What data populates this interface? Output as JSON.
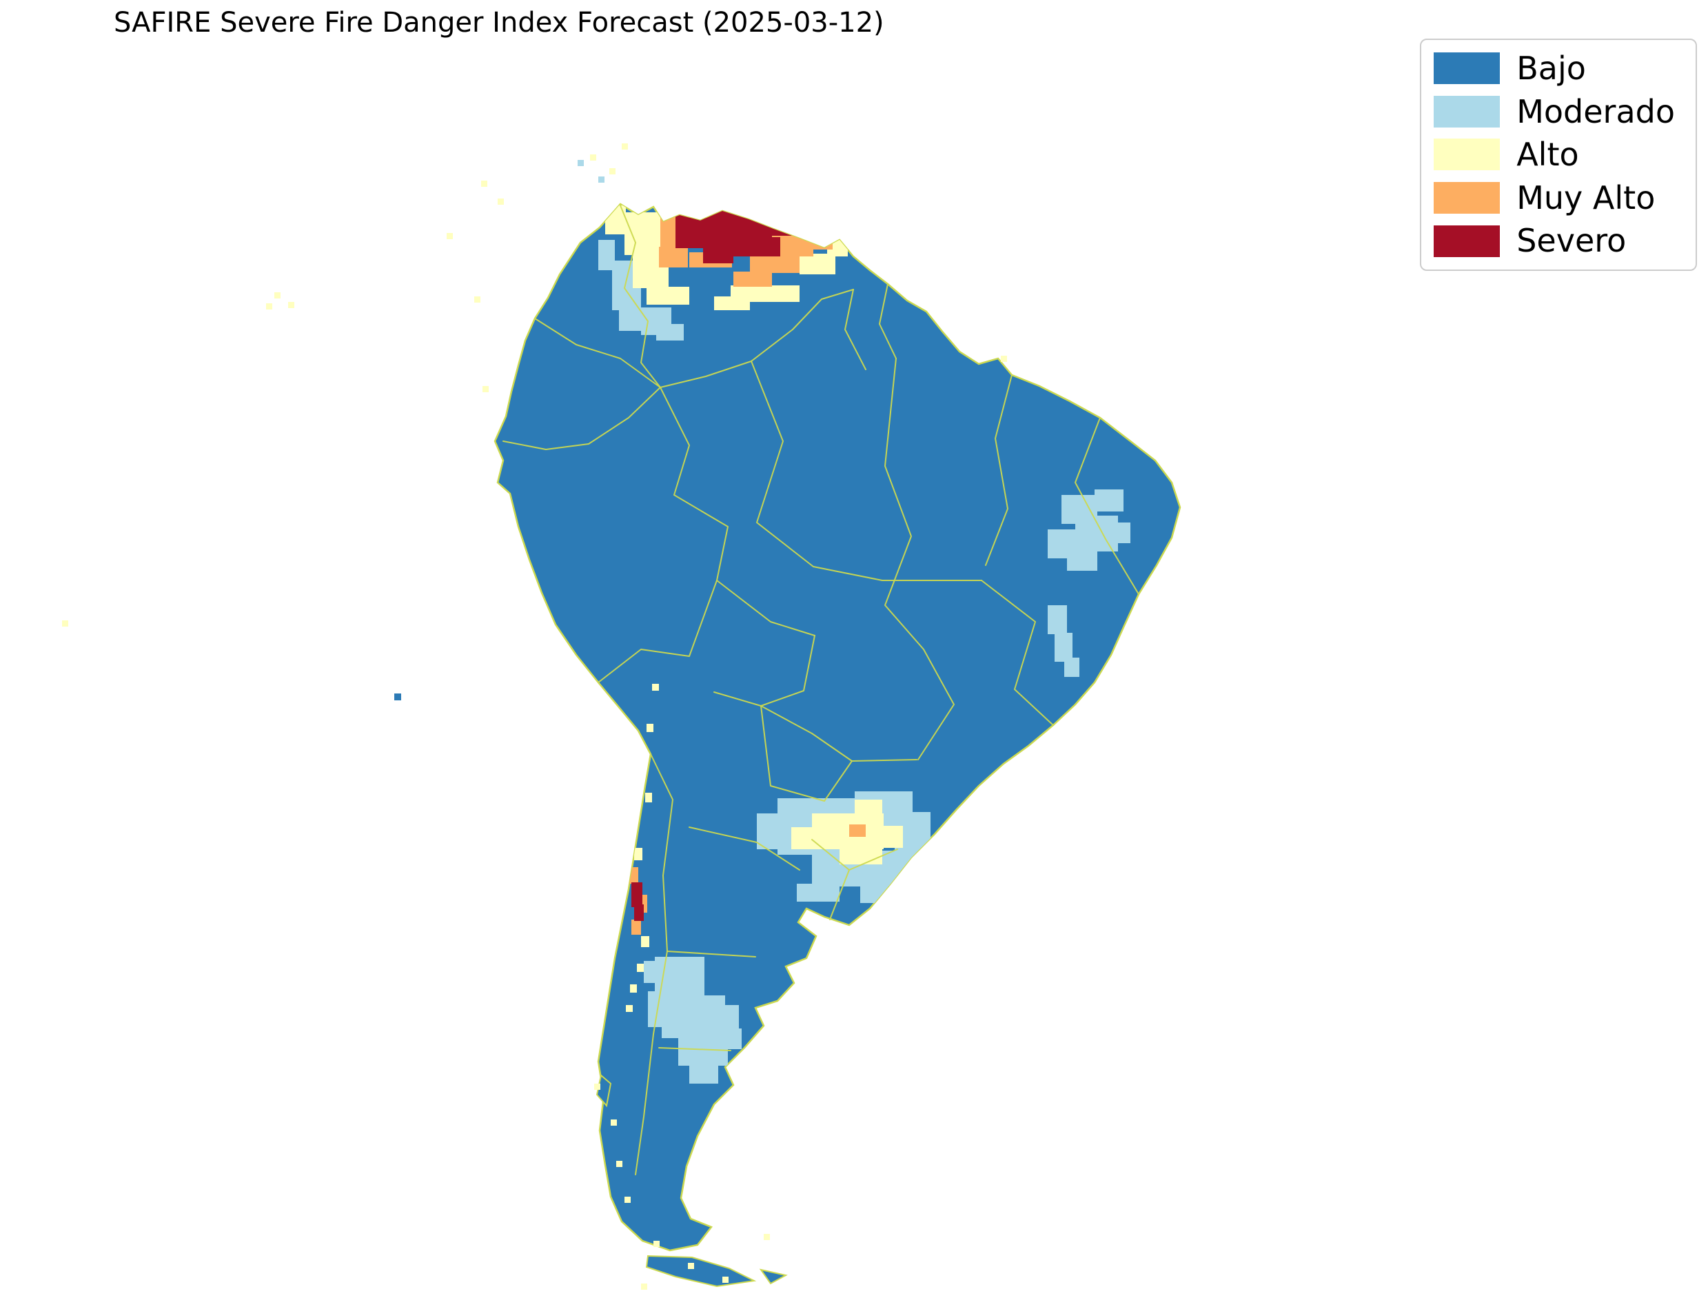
{
  "title": "SAFIRE Severe Fire Danger Index Forecast (2025-03-12)",
  "legend": {
    "items": [
      {
        "key": "bajo",
        "label": "Bajo",
        "color": "#2c7bb6"
      },
      {
        "key": "moderado",
        "label": "Moderado",
        "color": "#abd9e9"
      },
      {
        "key": "alto",
        "label": "Alto",
        "color": "#ffffbf"
      },
      {
        "key": "muy_alto",
        "label": "Muy Alto",
        "color": "#fdae61"
      },
      {
        "key": "severo",
        "label": "Severo",
        "color": "#a50f26"
      }
    ]
  },
  "map": {
    "base_level": "bajo",
    "boundary_color": "#ccd94f",
    "background": "#ffffff",
    "patches": [
      {
        "level": "moderado",
        "rects": [
          [
            888,
            378,
            42,
            72
          ],
          [
            898,
            448,
            62,
            32
          ],
          [
            930,
            446,
            44,
            40
          ],
          [
            868,
            348,
            24,
            44
          ],
          [
            952,
            470,
            40,
            24
          ],
          [
            1540,
            718,
            52,
            42
          ],
          [
            1560,
            748,
            62,
            52
          ],
          [
            1520,
            768,
            42,
            42
          ],
          [
            1588,
            710,
            42,
            32
          ],
          [
            1548,
            798,
            44,
            30
          ],
          [
            1608,
            758,
            32,
            30
          ],
          [
            1520,
            878,
            28,
            42
          ],
          [
            1530,
            918,
            26,
            42
          ],
          [
            1544,
            954,
            22,
            28
          ],
          [
            1128,
            1158,
            124,
            82
          ],
          [
            1240,
            1148,
            84,
            62
          ],
          [
            1298,
            1178,
            52,
            72
          ],
          [
            1178,
            1234,
            124,
            52
          ],
          [
            1278,
            1238,
            62,
            42
          ],
          [
            1098,
            1180,
            42,
            52
          ],
          [
            1248,
            1278,
            52,
            32
          ],
          [
            1156,
            1282,
            62,
            26
          ],
          [
            950,
            1388,
            72,
            62
          ],
          [
            960,
            1444,
            92,
            62
          ],
          [
            984,
            1500,
            72,
            46
          ],
          [
            1020,
            1458,
            52,
            42
          ],
          [
            940,
            1438,
            26,
            52
          ],
          [
            1000,
            1540,
            42,
            32
          ],
          [
            934,
            1394,
            18,
            32
          ],
          [
            1046,
            1492,
            30,
            30
          ]
        ]
      },
      {
        "level": "alto",
        "rects": [
          [
            906,
            308,
            54,
            62
          ],
          [
            918,
            368,
            52,
            50
          ],
          [
            948,
            258,
            62,
            42
          ],
          [
            1060,
            414,
            100,
            24
          ],
          [
            1160,
            368,
            52,
            30
          ],
          [
            1200,
            330,
            30,
            42
          ],
          [
            1008,
            238,
            72,
            24
          ],
          [
            878,
            298,
            30,
            42
          ],
          [
            938,
            416,
            62,
            26
          ],
          [
            1188,
            300,
            32,
            30
          ],
          [
            1036,
            430,
            52,
            20
          ],
          [
            1178,
            1180,
            104,
            52
          ],
          [
            1268,
            1198,
            42,
            32
          ],
          [
            1218,
            1224,
            62,
            30
          ],
          [
            1148,
            1200,
            42,
            32
          ],
          [
            1240,
            1160,
            40,
            24
          ],
          [
            920,
            1230,
            12,
            18
          ],
          [
            930,
            1358,
            12,
            16
          ],
          [
            936,
            1150,
            10,
            14
          ],
          [
            928,
            1100,
            10,
            12
          ],
          [
            938,
            1050,
            10,
            12
          ],
          [
            946,
            992,
            10,
            10
          ],
          [
            924,
            1398,
            10,
            12
          ],
          [
            914,
            1428,
            10,
            12
          ],
          [
            908,
            1458,
            10,
            10
          ]
        ]
      },
      {
        "level": "muy_alto",
        "rects": [
          [
            958,
            298,
            44,
            62
          ],
          [
            1118,
            332,
            62,
            40
          ],
          [
            1088,
            368,
            72,
            28
          ],
          [
            1148,
            290,
            42,
            40
          ],
          [
            1000,
            366,
            62,
            22
          ],
          [
            1040,
            258,
            44,
            32
          ],
          [
            1178,
            330,
            30,
            32
          ],
          [
            956,
            358,
            42,
            30
          ],
          [
            1064,
            394,
            56,
            22
          ],
          [
            1232,
            1196,
            24,
            18
          ],
          [
            912,
            1258,
            14,
            24
          ],
          [
            927,
            1298,
            12,
            26
          ],
          [
            916,
            1334,
            14,
            22
          ]
        ]
      },
      {
        "level": "severo",
        "rects": [
          [
            1000,
            290,
            120,
            60
          ],
          [
            980,
            310,
            44,
            50
          ],
          [
            1060,
            344,
            72,
            28
          ],
          [
            1020,
            350,
            44,
            32
          ],
          [
            1118,
            300,
            32,
            42
          ],
          [
            990,
            278,
            64,
            18
          ],
          [
            916,
            1280,
            16,
            36
          ],
          [
            920,
            1312,
            14,
            24
          ]
        ]
      }
    ],
    "speckles": [
      {
        "level": "alto",
        "size": 9,
        "cells": [
          [
            698,
            262
          ],
          [
            722,
            288
          ],
          [
            688,
            430
          ],
          [
            700,
            560
          ],
          [
            648,
            338
          ],
          [
            398,
            424
          ],
          [
            418,
            438
          ],
          [
            386,
            440
          ],
          [
            90,
            900
          ],
          [
            856,
            224
          ],
          [
            884,
            244
          ],
          [
            902,
            208
          ],
          [
            886,
            1624
          ],
          [
            894,
            1684
          ],
          [
            906,
            1736
          ],
          [
            948,
            1800
          ],
          [
            998,
            1832
          ],
          [
            1048,
            1852
          ],
          [
            930,
            1862
          ],
          [
            862,
            1572
          ],
          [
            1108,
            1790
          ],
          [
            1452,
            516
          ]
        ]
      },
      {
        "level": "moderado",
        "size": 9,
        "cells": [
          [
            868,
            256
          ],
          [
            838,
            232
          ]
        ]
      },
      {
        "level": "bajo",
        "size": 10,
        "cells": [
          [
            572,
            1006
          ]
        ]
      }
    ]
  }
}
